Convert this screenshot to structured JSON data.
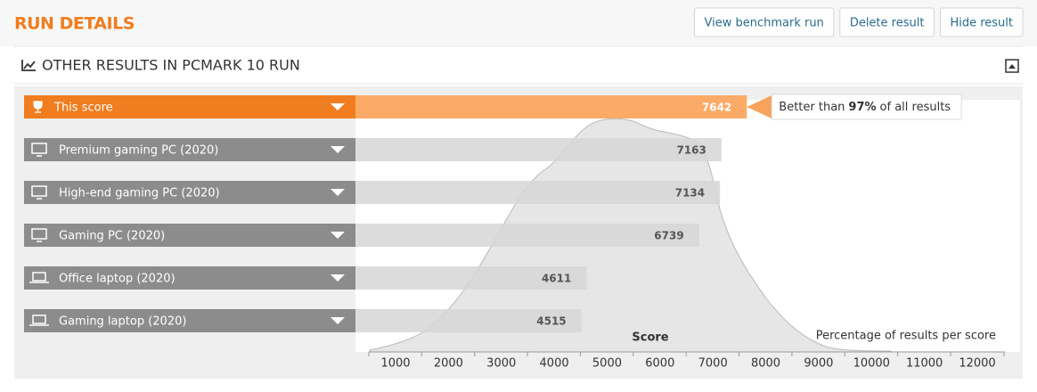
{
  "header": {
    "title": "RUN DETAILS",
    "buttons": [
      "View benchmark run",
      "Delete result",
      "Hide result"
    ]
  },
  "section": {
    "title": "OTHER RESULTS IN PCMARK 10 RUN"
  },
  "chart": {
    "rows": [
      {
        "label": "This score",
        "score": 7642
      },
      {
        "label": "Premium gaming PC (2020)",
        "score": 7163
      },
      {
        "label": "High-end gaming PC (2020)",
        "score": 7134
      },
      {
        "label": "Gaming PC (2020)",
        "score": 6739
      },
      {
        "label": "Office laptop (2020)",
        "score": 4611
      },
      {
        "label": "Gaming laptop (2020)",
        "score": 4515
      }
    ],
    "tooltip": {
      "prefix": "Better than",
      "percent": "97%",
      "suffix": "of all results"
    },
    "x_axis": {
      "label": "Score",
      "xlim": [
        500,
        12500
      ],
      "ticks": [
        1000,
        2000,
        3000,
        4000,
        5000,
        6000,
        7000,
        8000,
        9000,
        10000,
        11000,
        12000
      ]
    },
    "curve_label": "Percentage of results per score"
  }
}
